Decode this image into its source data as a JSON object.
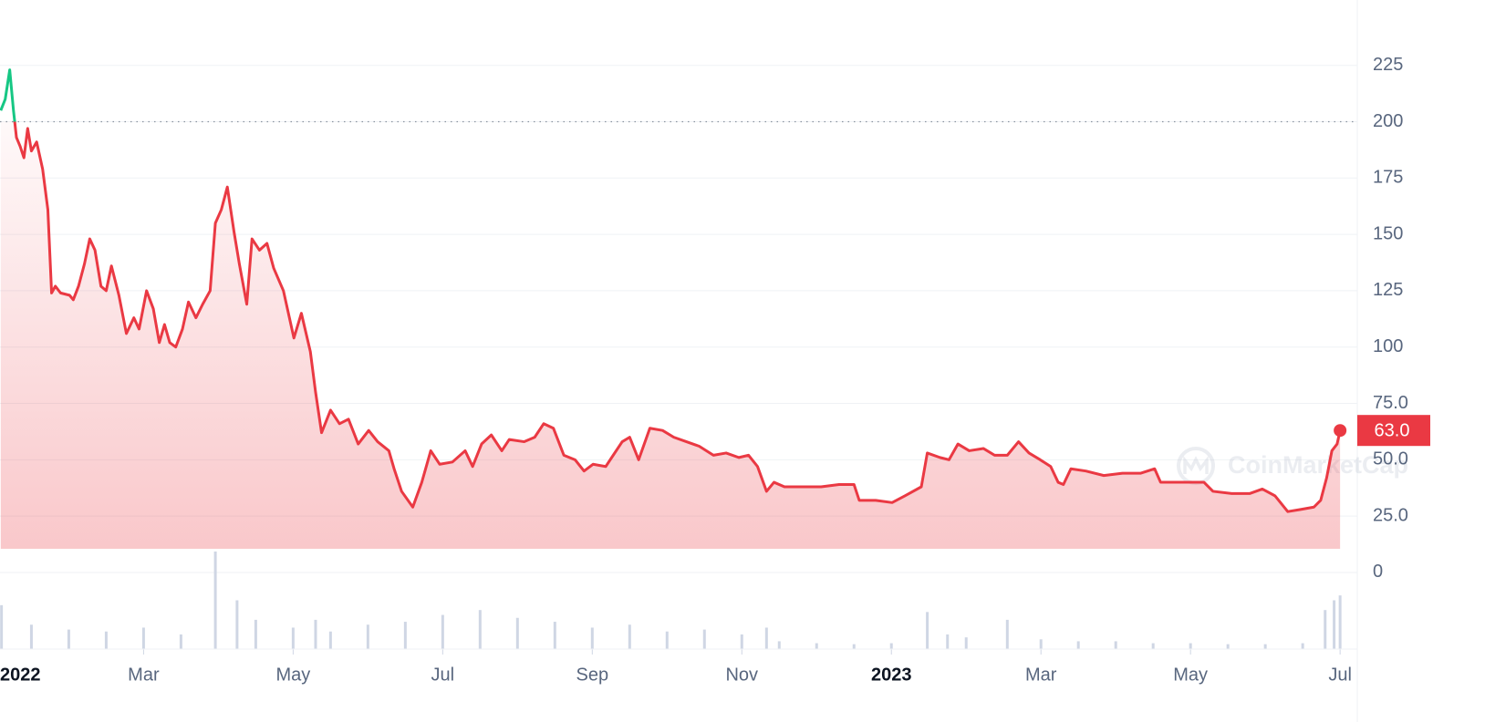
{
  "chart_data": {
    "type": "line",
    "xlim": [
      0.08,
      18.23
    ],
    "xticks": [
      {
        "value": 0,
        "label": "2022"
      },
      {
        "value": 2,
        "label": "Mar"
      },
      {
        "value": 4,
        "label": "May"
      },
      {
        "value": 6,
        "label": "Jul"
      },
      {
        "value": 8,
        "label": "Sep"
      },
      {
        "value": 10,
        "label": "Nov"
      },
      {
        "value": 12,
        "label": "2023"
      },
      {
        "value": 14,
        "label": "Mar"
      },
      {
        "value": 16,
        "label": "May"
      },
      {
        "value": 18,
        "label": "Jul"
      }
    ],
    "ylim": [
      -34,
      254
    ],
    "yticks": [
      0,
      {
        "value": 25,
        "label": "25.0"
      },
      {
        "value": 50,
        "label": "50.0"
      },
      {
        "value": 75,
        "label": "75.0"
      },
      100,
      125,
      150,
      175,
      200,
      225
    ],
    "grid": true,
    "reference": 200,
    "colors": {
      "above": "#16c784",
      "below": "#ea3943"
    },
    "current_price": {
      "value": 63,
      "label": "63.0"
    },
    "watermark": "CoinMarketCap",
    "x": [
      0.09,
      0.15,
      0.21,
      0.26,
      0.3,
      0.35,
      0.4,
      0.45,
      0.5,
      0.57,
      0.65,
      0.72,
      0.77,
      0.82,
      0.89,
      1.01,
      1.06,
      1.13,
      1.21,
      1.28,
      1.35,
      1.43,
      1.5,
      1.57,
      1.67,
      1.77,
      1.87,
      1.94,
      2.04,
      2.13,
      2.21,
      2.28,
      2.35,
      2.43,
      2.52,
      2.6,
      2.7,
      2.79,
      2.89,
      2.96,
      3.04,
      3.12,
      3.21,
      3.28,
      3.38,
      3.45,
      3.55,
      3.65,
      3.74,
      3.87,
      4.01,
      4.11,
      4.23,
      4.3,
      4.38,
      4.5,
      4.62,
      4.74,
      4.87,
      5.01,
      5.13,
      5.28,
      5.35,
      5.45,
      5.6,
      5.72,
      5.84,
      5.96,
      6.13,
      6.3,
      6.4,
      6.52,
      6.65,
      6.79,
      6.89,
      7.09,
      7.23,
      7.35,
      7.48,
      7.62,
      7.77,
      7.89,
      8.01,
      8.18,
      8.28,
      8.4,
      8.5,
      8.62,
      8.77,
      8.94,
      9.09,
      9.26,
      9.43,
      9.62,
      9.79,
      9.96,
      10.09,
      10.21,
      10.33,
      10.43,
      10.57,
      10.82,
      11.06,
      11.3,
      11.5,
      11.57,
      11.79,
      12.01,
      12.18,
      12.4,
      12.48,
      12.65,
      12.77,
      12.89,
      13.04,
      13.23,
      13.38,
      13.55,
      13.7,
      13.84,
      13.99,
      14.13,
      14.23,
      14.3,
      14.4,
      14.6,
      14.84,
      15.09,
      15.33,
      15.52,
      15.6,
      15.82,
      16.01,
      16.18,
      16.3,
      16.55,
      16.79,
      16.96,
      17.13,
      17.3,
      17.48,
      17.65,
      17.74,
      17.82,
      17.89,
      17.96,
      18.0
    ],
    "values": [
      205,
      210,
      223,
      205,
      193,
      189,
      184,
      197,
      187,
      191,
      179,
      161,
      124,
      127,
      124,
      123,
      121,
      127,
      137,
      148,
      143,
      127,
      125,
      136,
      123,
      106,
      113,
      108,
      125,
      117,
      102,
      110,
      102,
      100,
      108,
      120,
      113,
      119,
      125,
      155,
      161,
      171,
      151,
      137,
      119,
      148,
      143,
      146,
      135,
      125,
      104,
      115,
      98,
      80,
      62,
      72,
      66,
      68,
      57,
      63,
      58,
      54,
      46,
      36,
      29,
      40,
      54,
      48,
      49,
      54,
      47,
      57,
      61,
      54,
      59,
      58,
      60,
      66,
      64,
      52,
      50,
      45,
      48,
      47,
      52,
      58,
      60,
      50,
      64,
      63,
      60,
      58,
      56,
      52,
      53,
      51,
      52,
      47,
      36,
      40,
      38,
      38,
      38,
      39,
      39,
      32,
      32,
      31,
      34,
      38,
      53,
      51,
      50,
      57,
      54,
      55,
      52,
      52,
      58,
      53,
      50,
      47,
      40,
      39,
      46,
      45,
      43,
      44,
      44,
      46,
      40,
      40,
      40,
      40,
      36,
      35,
      35,
      37,
      34,
      27,
      28,
      29,
      32,
      42,
      54,
      57,
      63
    ],
    "volume": {
      "color": "#cfd6e4",
      "lim": [
        0,
        100
      ],
      "x": [
        0.1,
        0.5,
        1,
        1.5,
        2,
        2.5,
        2.96,
        3.25,
        3.5,
        4,
        4.3,
        4.5,
        5,
        5.5,
        6,
        6.5,
        7,
        7.5,
        8,
        8.5,
        9,
        9.5,
        10,
        10.33,
        10.5,
        11,
        11.5,
        12,
        12.48,
        12.75,
        13,
        13.55,
        14,
        14.5,
        15,
        15.5,
        16,
        16.5,
        17,
        17.5,
        17.8,
        17.92,
        18
      ],
      "values": [
        45,
        25,
        20,
        18,
        22,
        15,
        100,
        50,
        30,
        22,
        30,
        18,
        25,
        28,
        35,
        40,
        32,
        28,
        22,
        25,
        18,
        20,
        15,
        22,
        8,
        6,
        5,
        6,
        38,
        15,
        12,
        30,
        10,
        8,
        8,
        6,
        6,
        5,
        5,
        6,
        40,
        50,
        55
      ]
    }
  }
}
